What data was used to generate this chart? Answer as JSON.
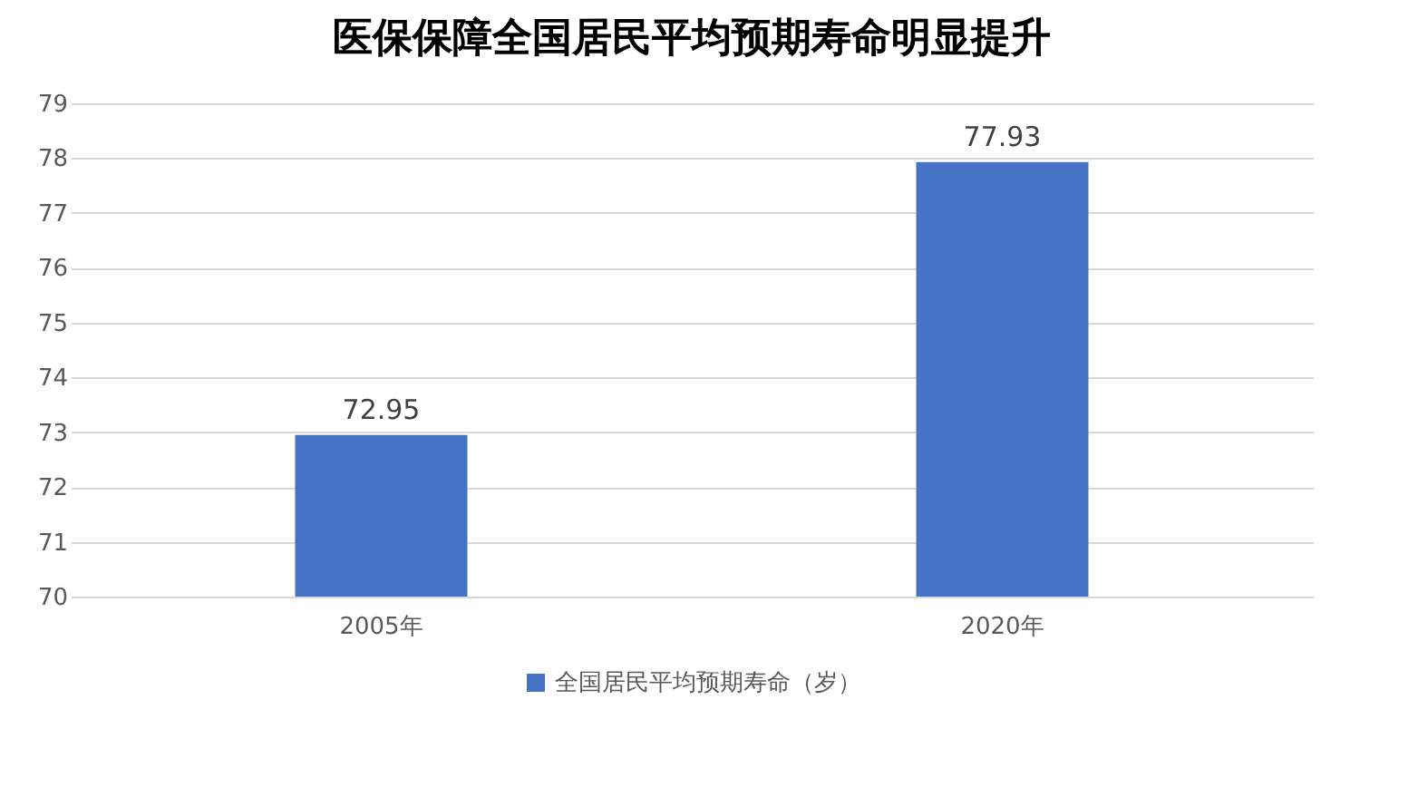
{
  "chart_data": {
    "type": "bar",
    "title": "医保保障全国居民平均预期寿命明显提升",
    "categories": [
      "2005年",
      "2020年"
    ],
    "series": [
      {
        "name": "全国居民平均预期寿命（岁）",
        "color": "#4472c4",
        "values": [
          72.95,
          77.93
        ]
      }
    ],
    "ylim": [
      70,
      79
    ],
    "yticks": [
      70,
      71,
      72,
      73,
      74,
      75,
      76,
      77,
      78,
      79
    ],
    "grid": "y",
    "legend": "bottom",
    "data_labels": true
  }
}
